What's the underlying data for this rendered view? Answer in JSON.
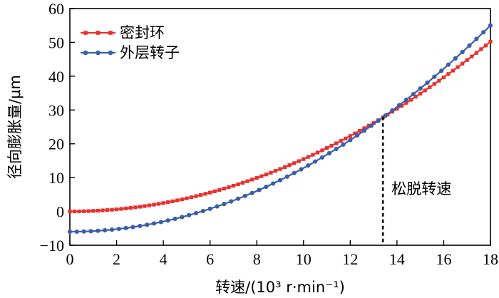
{
  "chart_data": {
    "type": "line",
    "title": "",
    "xlabel": "转速/(10³ r·min⁻¹)",
    "ylabel": "径向膨胀量/μm",
    "xlim": [
      0,
      18
    ],
    "ylim": [
      -10,
      60
    ],
    "xticks": [
      0,
      2,
      4,
      6,
      8,
      10,
      12,
      14,
      16,
      18
    ],
    "yticks": [
      -10,
      0,
      10,
      20,
      30,
      40,
      50,
      60
    ],
    "xtick_labels": [
      "0",
      "2",
      "4",
      "6",
      "8",
      "10",
      "12",
      "14",
      "16",
      "18"
    ],
    "ytick_labels": [
      "−10",
      "0",
      "10",
      "20",
      "30",
      "40",
      "50",
      "60"
    ],
    "grid": false,
    "legend_position": "top-left",
    "series": [
      {
        "name": "密封环",
        "color": "#e8312f",
        "marker": "square",
        "model": "y = 0.1549·x²",
        "x_range": [
          0,
          18
        ],
        "y_range": [
          0.0,
          50.2
        ],
        "points": 91
      },
      {
        "name": "外层转子",
        "color": "#3b5ea8",
        "marker": "circle",
        "model": "y = 0.1883·x² − 6",
        "x_range": [
          0,
          18
        ],
        "y_range": [
          -6.0,
          55.0
        ],
        "points": 61
      }
    ],
    "annotations": [
      {
        "text": "松脱转速",
        "x": 13.4,
        "y_from": -10,
        "y_to": 28,
        "style": "dashed vertical line"
      }
    ]
  }
}
